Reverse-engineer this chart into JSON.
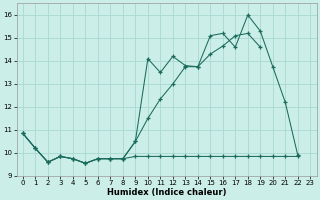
{
  "xlabel": "Humidex (Indice chaleur)",
  "background_color": "#cceee8",
  "grid_color": "#aad8d2",
  "line_color": "#1a6b5c",
  "xlim": [
    -0.5,
    23.5
  ],
  "ylim": [
    9.0,
    16.5
  ],
  "yticks": [
    9,
    10,
    11,
    12,
    13,
    14,
    15,
    16
  ],
  "xticks": [
    0,
    1,
    2,
    3,
    4,
    5,
    6,
    7,
    8,
    9,
    10,
    11,
    12,
    13,
    14,
    15,
    16,
    17,
    18,
    19,
    20,
    21,
    22,
    23
  ],
  "line1_x": [
    0,
    1,
    2,
    3,
    4,
    5,
    6,
    7,
    8,
    9,
    10,
    11,
    12,
    13,
    14,
    15,
    16,
    17,
    18,
    19,
    20,
    21,
    22
  ],
  "line1_y": [
    10.85,
    10.2,
    9.6,
    9.85,
    9.75,
    9.55,
    9.75,
    9.75,
    9.75,
    10.5,
    14.1,
    13.5,
    14.2,
    13.8,
    13.75,
    15.1,
    15.2,
    14.6,
    16.0,
    15.3,
    13.75,
    12.2,
    9.9
  ],
  "line2_x": [
    0,
    1,
    2,
    3,
    4,
    5,
    6,
    7,
    8,
    9,
    10,
    11,
    12,
    13,
    14,
    15,
    16,
    17,
    18,
    19,
    20,
    21,
    22
  ],
  "line2_y": [
    10.85,
    10.2,
    9.6,
    9.85,
    9.75,
    9.55,
    9.75,
    9.75,
    9.75,
    9.85,
    9.85,
    9.85,
    9.85,
    9.85,
    9.85,
    9.85,
    9.85,
    9.85,
    9.85,
    9.85,
    9.85,
    9.85,
    9.85
  ],
  "line3_x": [
    0,
    1,
    2,
    3,
    4,
    5,
    6,
    7,
    8,
    9,
    10,
    11,
    12,
    13,
    14,
    15,
    16,
    17,
    18,
    19
  ],
  "line3_y": [
    10.85,
    10.2,
    9.6,
    9.85,
    9.75,
    9.55,
    9.75,
    9.75,
    9.75,
    10.5,
    11.5,
    12.35,
    13.0,
    13.75,
    13.75,
    14.3,
    14.65,
    15.1,
    15.2,
    14.6
  ]
}
